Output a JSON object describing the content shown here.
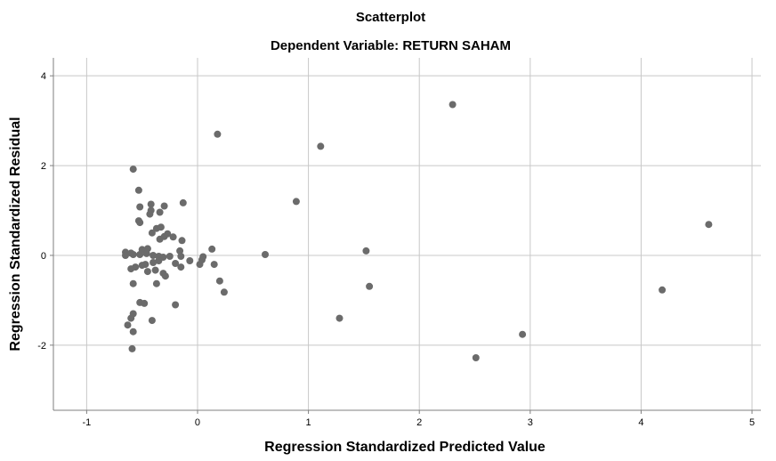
{
  "chart_data": {
    "type": "scatter",
    "title": "Scatterplot",
    "subtitle": "Dependent Variable: RETURN SAHAM",
    "xlabel": "Regression Standardized Predicted Value",
    "ylabel": "Regression Standardized Residual",
    "xlim": [
      -1.3,
      5.08
    ],
    "ylim": [
      -3.45,
      4.4
    ],
    "xticks": [
      -1,
      0,
      1,
      2,
      3,
      4,
      5
    ],
    "yticks": [
      -2,
      0,
      2,
      4
    ],
    "xtick_labels": [
      "-1",
      "0",
      "1",
      "2",
      "3",
      "4",
      "5"
    ],
    "ytick_labels": [
      "-2",
      "0",
      "2",
      "4"
    ],
    "grid": true,
    "point_color": "#6b6b6b",
    "grid_color": "#c8c8c8",
    "axis_color": "#7f7f7f",
    "points": [
      [
        -0.58,
        1.92
      ],
      [
        -0.53,
        1.45
      ],
      [
        -0.52,
        1.08
      ],
      [
        -0.53,
        0.77
      ],
      [
        -0.52,
        0.73
      ],
      [
        -0.42,
        1.14
      ],
      [
        -0.42,
        1.0
      ],
      [
        -0.43,
        0.92
      ],
      [
        -0.34,
        0.96
      ],
      [
        -0.3,
        1.1
      ],
      [
        -0.13,
        1.17
      ],
      [
        -0.37,
        0.6
      ],
      [
        -0.33,
        0.63
      ],
      [
        -0.41,
        0.5
      ],
      [
        -0.3,
        0.42
      ],
      [
        -0.27,
        0.48
      ],
      [
        -0.22,
        0.41
      ],
      [
        -0.34,
        0.36
      ],
      [
        -0.14,
        0.33
      ],
      [
        -0.16,
        0.1
      ],
      [
        0.13,
        0.14
      ],
      [
        -0.45,
        0.15
      ],
      [
        -0.5,
        0.13
      ],
      [
        -0.65,
        0.07
      ],
      [
        -0.6,
        0.05
      ],
      [
        -0.65,
        0.0
      ],
      [
        -0.58,
        0.02
      ],
      [
        -0.52,
        0.02
      ],
      [
        -0.46,
        0.04
      ],
      [
        -0.4,
        0.0
      ],
      [
        -0.35,
        -0.02
      ],
      [
        -0.31,
        -0.04
      ],
      [
        -0.25,
        -0.02
      ],
      [
        -0.15,
        -0.02
      ],
      [
        -0.07,
        -0.12
      ],
      [
        0.05,
        -0.03
      ],
      [
        0.04,
        -0.1
      ],
      [
        0.02,
        -0.2
      ],
      [
        -0.2,
        -0.18
      ],
      [
        -0.15,
        -0.26
      ],
      [
        -0.35,
        -0.12
      ],
      [
        -0.4,
        -0.16
      ],
      [
        -0.47,
        -0.2
      ],
      [
        -0.5,
        -0.22
      ],
      [
        -0.56,
        -0.26
      ],
      [
        -0.6,
        -0.3
      ],
      [
        -0.38,
        -0.33
      ],
      [
        -0.45,
        -0.36
      ],
      [
        -0.31,
        -0.4
      ],
      [
        -0.29,
        -0.46
      ],
      [
        0.15,
        -0.2
      ],
      [
        -0.37,
        -0.63
      ],
      [
        -0.58,
        -0.63
      ],
      [
        0.2,
        -0.57
      ],
      [
        0.24,
        -0.82
      ],
      [
        -0.52,
        -1.05
      ],
      [
        -0.48,
        -1.07
      ],
      [
        -0.2,
        -1.1
      ],
      [
        -0.58,
        -1.3
      ],
      [
        -0.6,
        -1.4
      ],
      [
        -0.41,
        -1.45
      ],
      [
        -0.63,
        -1.55
      ],
      [
        -0.58,
        -1.7
      ],
      [
        -0.59,
        -2.08
      ],
      [
        0.18,
        2.7
      ],
      [
        0.61,
        0.02
      ],
      [
        0.89,
        1.2
      ],
      [
        1.11,
        2.43
      ],
      [
        1.28,
        -1.4
      ],
      [
        1.52,
        0.1
      ],
      [
        1.55,
        -0.69
      ],
      [
        2.3,
        3.36
      ],
      [
        2.51,
        -2.28
      ],
      [
        2.93,
        -1.76
      ],
      [
        4.19,
        -0.77
      ],
      [
        4.61,
        0.69
      ]
    ]
  }
}
